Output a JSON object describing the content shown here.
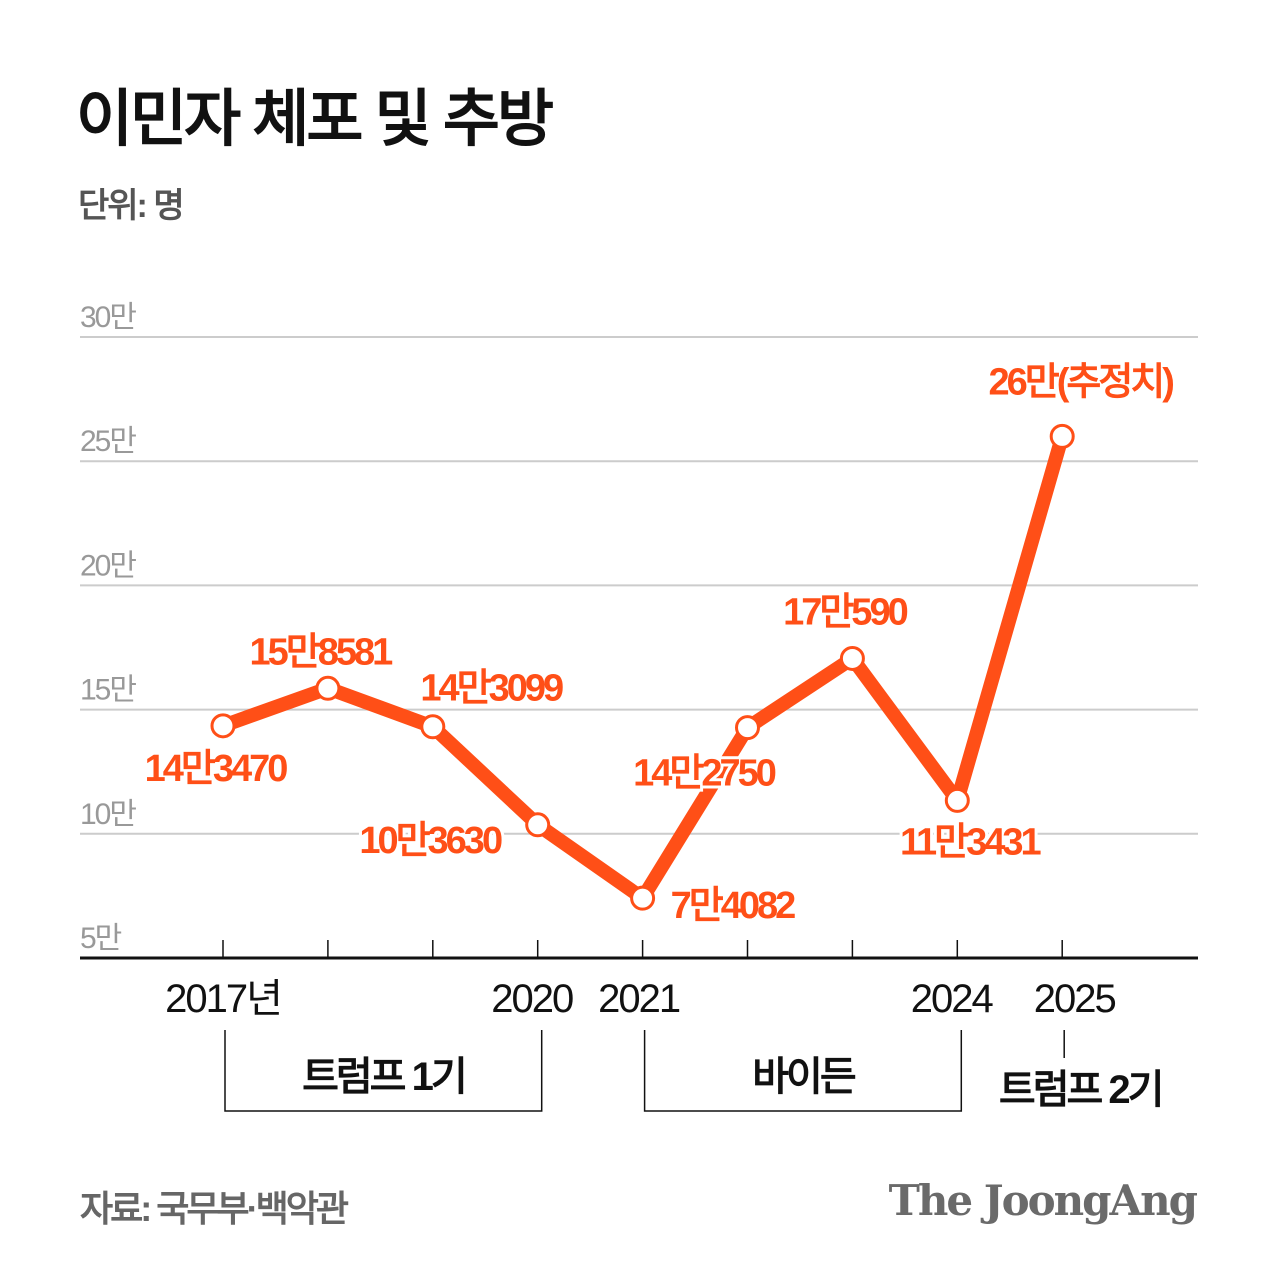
{
  "title": "이민자 체포 및 추방",
  "unit": "단위: 명",
  "source": "자료: 국무부·백악관",
  "logo": "The JoongAng",
  "colors": {
    "series": "#ff4f17",
    "grid": "#cccccc",
    "axis": "#111111",
    "tick_label": "#999999"
  },
  "chart_data": {
    "type": "line",
    "x": [
      2017,
      2018,
      2019,
      2020,
      2021,
      2022,
      2023,
      2024,
      2025
    ],
    "x_tick_labels": [
      {
        "x": 2017,
        "label": "2017년"
      },
      {
        "x": 2020,
        "label": "2020"
      },
      {
        "x": 2021,
        "label": "2021"
      },
      {
        "x": 2024,
        "label": "2024"
      },
      {
        "x": 2025,
        "label": "2025"
      }
    ],
    "values": [
      143470,
      158581,
      143099,
      103630,
      74082,
      142750,
      170590,
      113431,
      260000
    ],
    "data_labels": [
      "14만3470",
      "15만8581",
      "14만3099",
      "10만3630",
      "7만4082",
      "14만2750",
      "17만590",
      "11만3431",
      "26만(추정치)"
    ],
    "ylim": [
      50000,
      300000
    ],
    "y_ticks": [
      {
        "value": 300000,
        "label": "30만"
      },
      {
        "value": 250000,
        "label": "25만"
      },
      {
        "value": 200000,
        "label": "20만"
      },
      {
        "value": 150000,
        "label": "15만"
      },
      {
        "value": 100000,
        "label": "10만"
      },
      {
        "value": 50000,
        "label": "5만"
      }
    ],
    "grid": true,
    "periods": [
      {
        "label": "트럼프 1기",
        "from": 2017,
        "to": 2020
      },
      {
        "label": "바이든",
        "from": 2021,
        "to": 2024
      },
      {
        "label": "트럼프 2기",
        "from": 2025,
        "to": 2025
      }
    ]
  }
}
